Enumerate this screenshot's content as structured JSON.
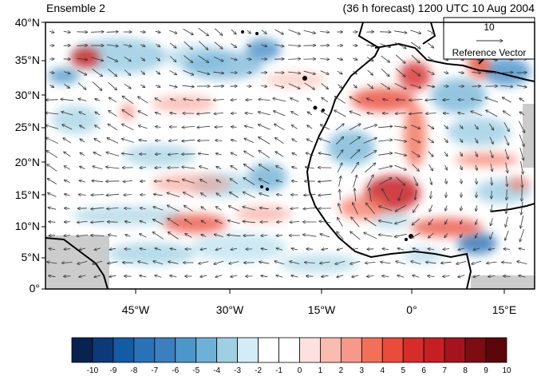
{
  "title_left": "Ensemble 2",
  "title_right": "(36 h forecast) 1200 UTC 10 Aug 2004",
  "reference_vector": {
    "magnitude": "10",
    "label": "Reference Vector"
  },
  "axes": {
    "lat_labels": [
      "40°N",
      "35°N",
      "30°N",
      "25°N",
      "20°N",
      "15°N",
      "10°N",
      "5°N",
      "0°"
    ],
    "lon_labels": [
      "45°W",
      "30°W",
      "15°W",
      "0°",
      "15°E"
    ]
  },
  "colorbar": {
    "labels": [
      "-10",
      "-9",
      "-8",
      "-7",
      "-6",
      "-5",
      "-4",
      "-3",
      "-2",
      "-1",
      "0",
      "1",
      "2",
      "3",
      "4",
      "5",
      "6",
      "7",
      "8",
      "9",
      "10"
    ],
    "colors": [
      "#08234f",
      "#0c3a78",
      "#135ba5",
      "#2a72b8",
      "#3b7fbf",
      "#4c97c9",
      "#6fb1d6",
      "#9ed0e2",
      "#d3edf7",
      "#ffffff",
      "#ffffff",
      "#fde0e0",
      "#fbbcb0",
      "#f8988a",
      "#f37058",
      "#ea4b3a",
      "#d62d2a",
      "#c51f24",
      "#a4141c",
      "#7d0c13",
      "#5c050b"
    ]
  },
  "map_colors": {
    "positive": "#e8514a",
    "negative": "#3a87c6",
    "land_missing": "#cccccc"
  }
}
